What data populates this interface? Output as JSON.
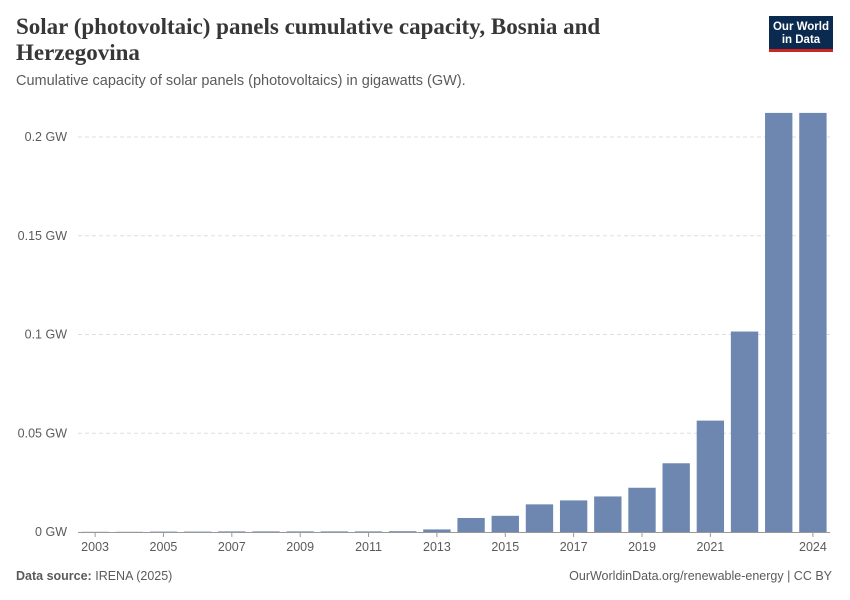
{
  "header": {
    "title": "Solar (photovoltaic) panels cumulative capacity, Bosnia and Herzegovina",
    "subtitle": "Cumulative capacity of solar panels (photovoltaics) in gigawatts (GW).",
    "logo_line1": "Our World",
    "logo_line2": "in Data"
  },
  "footer": {
    "source_label": "Data source:",
    "source_value": "IRENA (2025)",
    "right_text": "OurWorldinData.org/renewable-energy | CC BY"
  },
  "colors": {
    "bar": "#6d87b1",
    "grid": "#dddddd",
    "axis": "#999999",
    "text": "#5b5b5b"
  },
  "chart_data": {
    "type": "bar",
    "title": "Solar (photovoltaic) panels cumulative capacity, Bosnia and Herzegovina",
    "ylabel": "",
    "xlabel": "",
    "unit": "GW",
    "ylim": [
      0,
      0.2
    ],
    "yticks": [
      0,
      0.05,
      0.1,
      0.15,
      0.2
    ],
    "ytick_labels": [
      "0 GW",
      "0.05 GW",
      "0.1 GW",
      "0.15 GW",
      "0.2 GW"
    ],
    "xtick_labels": [
      "2003",
      "2005",
      "2007",
      "2009",
      "2011",
      "2013",
      "2015",
      "2017",
      "2019",
      "2021",
      "2024"
    ],
    "categories": [
      "2003",
      "2004",
      "2005",
      "2006",
      "2007",
      "2008",
      "2009",
      "2010",
      "2011",
      "2012",
      "2013",
      "2014",
      "2015",
      "2016",
      "2017",
      "2018",
      "2019",
      "2020",
      "2021",
      "2022",
      "2023",
      "2024"
    ],
    "values": [
      0.0001,
      0.0001,
      0.0002,
      0.0002,
      0.0003,
      0.0003,
      0.0003,
      0.0003,
      0.0003,
      0.0004,
      0.0013,
      0.0071,
      0.0082,
      0.014,
      0.016,
      0.018,
      0.0224,
      0.0348,
      0.0564,
      0.1015,
      0.2122,
      0.2122
    ],
    "grid": "horizontal dashed",
    "legend": "none"
  }
}
